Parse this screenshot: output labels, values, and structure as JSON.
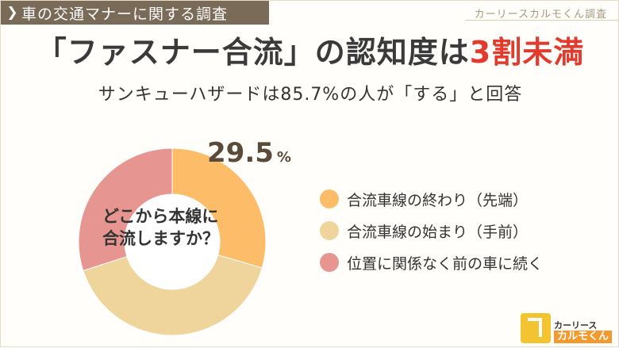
{
  "header": {
    "tag_text": "車の交通マナーに関する調査",
    "credit": "カーリースカルモくん調査"
  },
  "headline": {
    "main": "「ファスナー合流」の認知度は",
    "accent": "3割未満"
  },
  "subheadline": "サンキューハザードは85.7%の人が「する」と回答",
  "chart_data": {
    "type": "pie",
    "donut": true,
    "center_label": [
      "どこから本線に",
      "合流しますか？"
    ],
    "highlight_value": "29.5",
    "highlight_unit": "%",
    "slices": [
      {
        "label": "合流車線の終わり（先端）",
        "value": 29.5,
        "color": "#fdbd68"
      },
      {
        "label": "合流車線の始まり（手前）",
        "value": 40.5,
        "color": "#efd59c"
      },
      {
        "label": "位置に関係なく前の車に続く",
        "value": 30.0,
        "color": "#e79591"
      }
    ],
    "start_angle_deg": 0,
    "legend_position": "right"
  },
  "logo": {
    "line1": "カーリース",
    "line2": "カルモくん"
  }
}
